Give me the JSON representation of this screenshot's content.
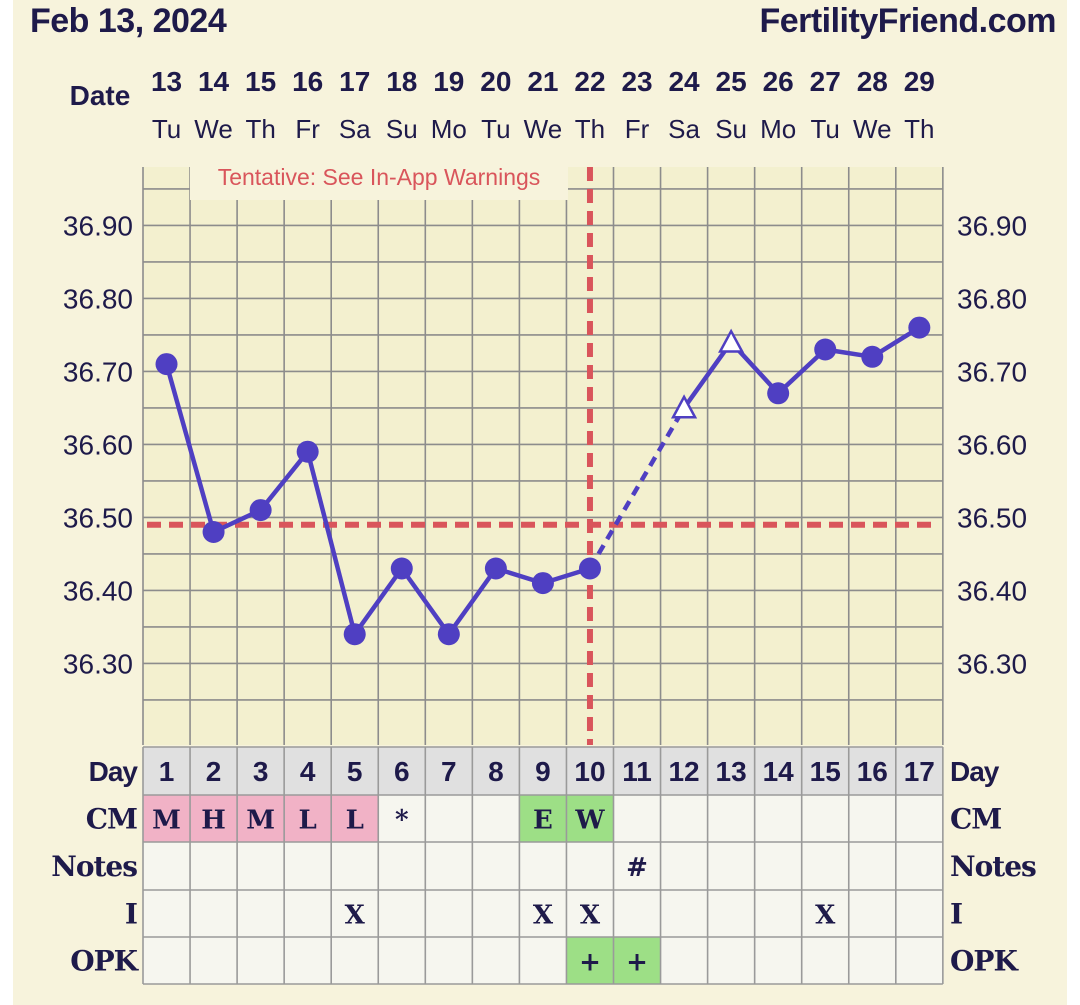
{
  "header": {
    "date": "Feb 13, 2024",
    "site": "FertilityFriend.com"
  },
  "labels": {
    "date": "Date",
    "day": "Day",
    "cm": "CM",
    "notes": "Notes",
    "intercourse": "I",
    "opk": "OPK"
  },
  "warning": "Tentative: See In-App Warnings",
  "colors": {
    "background": "#f7f3dc",
    "line": "#4f3fc2",
    "coverline": "#d9555b",
    "cm_pink": "#f1b2c6",
    "cm_green": "#9ddf86",
    "text": "#1e1a4a"
  },
  "chart_data": {
    "type": "line",
    "ylim": [
      36.2,
      36.98
    ],
    "yticks": [
      "36.30",
      "36.40",
      "36.50",
      "36.60",
      "36.70",
      "36.80",
      "36.90"
    ],
    "dates": [
      "13",
      "14",
      "15",
      "16",
      "17",
      "18",
      "19",
      "20",
      "21",
      "22",
      "23",
      "24",
      "25",
      "26",
      "27",
      "28",
      "29"
    ],
    "weekdays": [
      "Tu",
      "We",
      "Th",
      "Fr",
      "Sa",
      "Su",
      "Mo",
      "Tu",
      "We",
      "Th",
      "Fr",
      "Sa",
      "Su",
      "Mo",
      "Tu",
      "We",
      "Th"
    ],
    "cycle_days": [
      "1",
      "2",
      "3",
      "4",
      "5",
      "6",
      "7",
      "8",
      "9",
      "10",
      "11",
      "12",
      "13",
      "14",
      "15",
      "16",
      "17"
    ],
    "temperatures": [
      36.71,
      36.48,
      36.51,
      36.59,
      36.34,
      36.43,
      36.34,
      36.43,
      36.41,
      36.43,
      null,
      36.65,
      36.74,
      36.67,
      36.73,
      36.72,
      36.76
    ],
    "discarded_days": [
      12,
      13
    ],
    "coverline": 36.49,
    "ovulation_day": 10,
    "cm": [
      "M",
      "H",
      "M",
      "L",
      "L",
      "*",
      "",
      "",
      "E",
      "W",
      "",
      "",
      "",
      "",
      "",
      "",
      ""
    ],
    "cm_colors": [
      "pink",
      "pink",
      "pink",
      "pink",
      "pink",
      "",
      "",
      "",
      "green",
      "green",
      "",
      "",
      "",
      "",
      "",
      "",
      ""
    ],
    "notes": [
      "",
      "",
      "",
      "",
      "",
      "",
      "",
      "",
      "",
      "",
      "#",
      "",
      "",
      "",
      "",
      "",
      ""
    ],
    "intercourse": [
      "",
      "",
      "",
      "",
      "X",
      "",
      "",
      "",
      "X",
      "X",
      "",
      "",
      "",
      "",
      "X",
      "",
      ""
    ],
    "opk": [
      "",
      "",
      "",
      "",
      "",
      "",
      "",
      "",
      "",
      "+",
      "+",
      "",
      "",
      "",
      "",
      "",
      ""
    ]
  }
}
